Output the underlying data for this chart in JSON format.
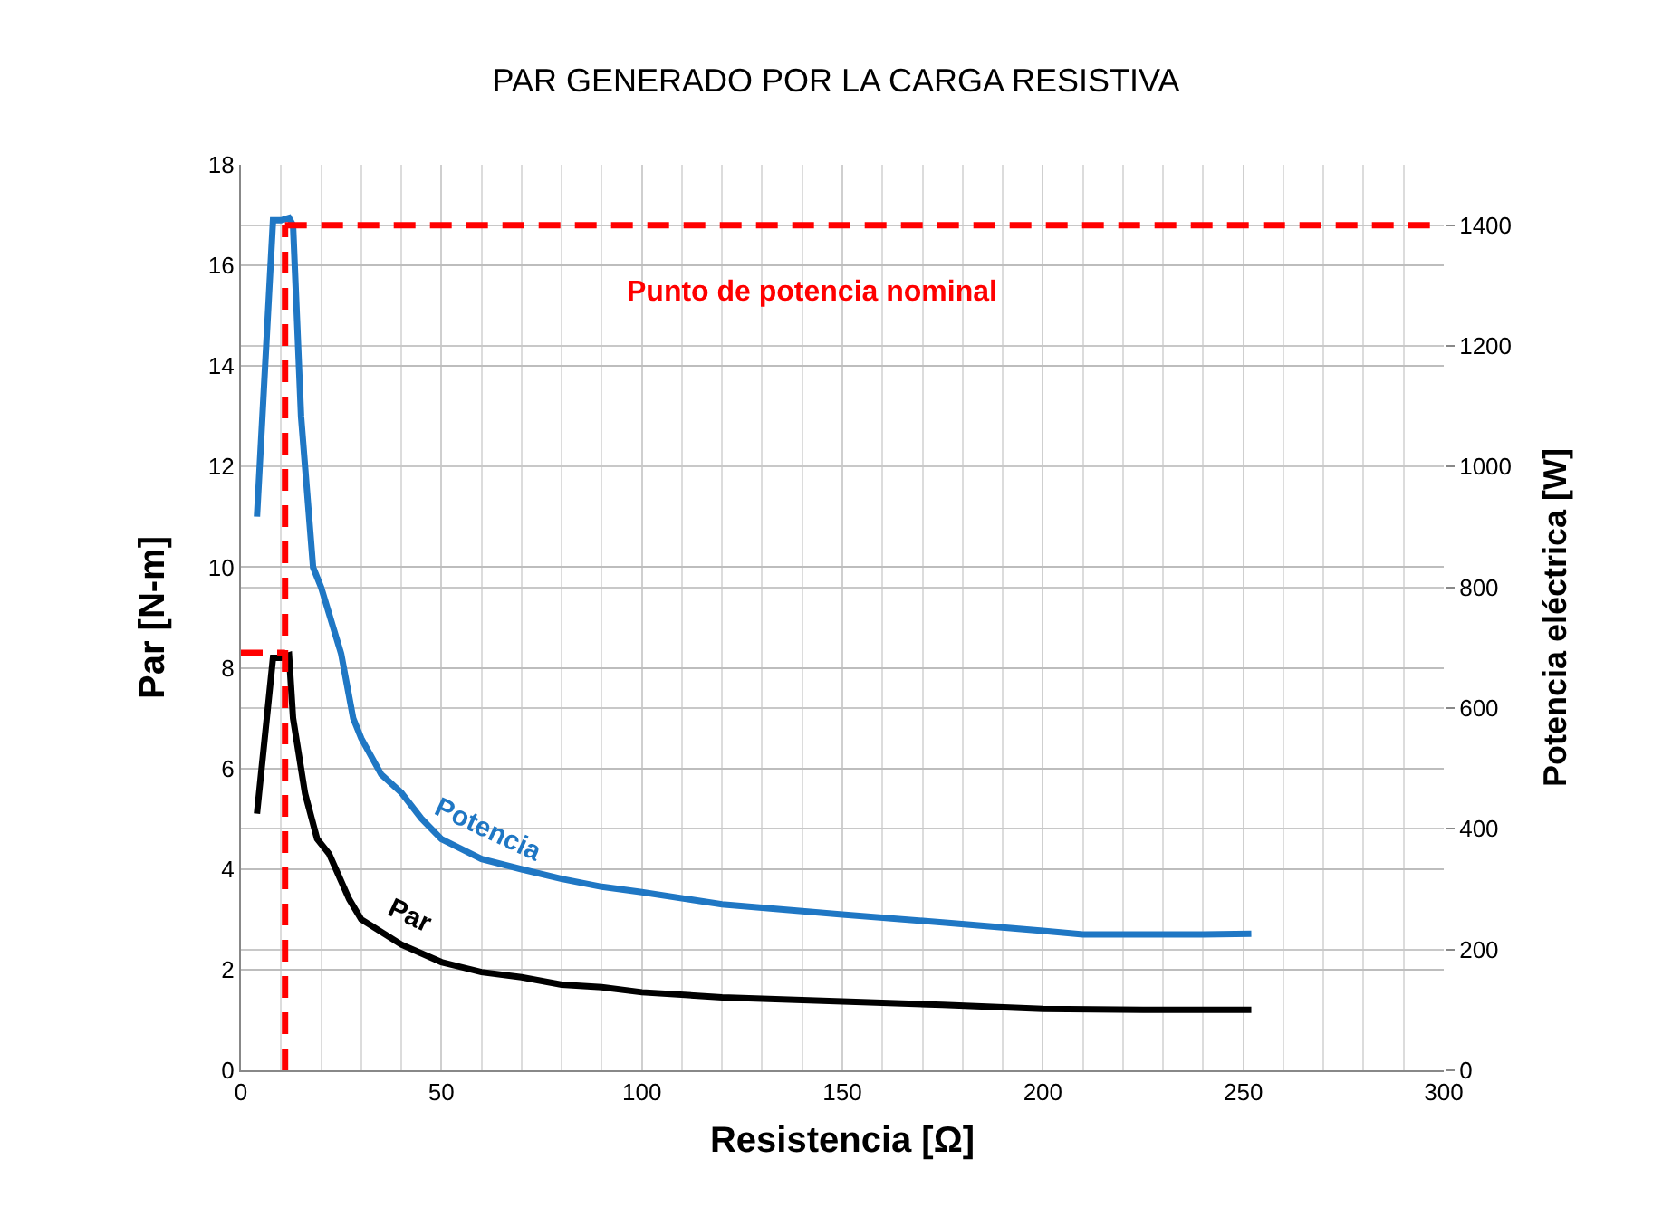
{
  "chart_data": {
    "type": "line",
    "title": "PAR GENERADO POR LA CARGA RESISTIVA",
    "xlabel": "Resistencia [Ω]",
    "ylabel": "Par [N-m]",
    "y2label": "Potencia eléctrica [W]",
    "xlim": [
      0,
      300
    ],
    "xticks": [
      0,
      50,
      100,
      150,
      200,
      250,
      300
    ],
    "ylim": [
      0,
      18
    ],
    "yticks": [
      0,
      2,
      4,
      6,
      8,
      10,
      12,
      14,
      16,
      18
    ],
    "y2lim": [
      0,
      1500
    ],
    "y2ticks": [
      0,
      200,
      400,
      600,
      800,
      1000,
      1200,
      1400
    ],
    "grid": true,
    "legend": false,
    "marker": "none",
    "line_style": "solid",
    "series": [
      {
        "name": "Potencia",
        "color": "#1f77c4",
        "axis": "y2",
        "x": [
          4,
          8,
          10,
          12,
          13,
          15,
          18,
          20,
          25,
          28,
          30,
          35,
          40,
          45,
          50,
          60,
          70,
          80,
          90,
          100,
          120,
          150,
          175,
          200,
          210,
          225,
          240,
          252
        ],
        "values": [
          917,
          1408,
          1408,
          1412,
          1400,
          1083,
          833,
          800,
          690,
          583,
          550,
          490,
          460,
          417,
          383,
          350,
          333,
          317,
          304,
          295,
          275,
          258,
          245,
          231,
          225,
          225,
          225,
          226
        ]
      },
      {
        "name": "Par",
        "color": "#000000",
        "axis": "y",
        "x": [
          4,
          8,
          10,
          12,
          13,
          16,
          19,
          22,
          27,
          30,
          40,
          50,
          60,
          70,
          80,
          90,
          100,
          120,
          150,
          175,
          200,
          225,
          252
        ],
        "values": [
          5.1,
          8.2,
          8.2,
          8.25,
          7,
          5.5,
          4.6,
          4.3,
          3.4,
          3.0,
          2.5,
          2.15,
          1.95,
          1.85,
          1.7,
          1.65,
          1.55,
          1.45,
          1.37,
          1.3,
          1.22,
          1.2,
          1.2
        ]
      },
      {
        "color": "#ff0000",
        "axis": "y",
        "line_style": "dashed",
        "x": [
          0,
          11
        ],
        "values": [
          8.3,
          8.3
        ]
      }
    ],
    "ref_lines": [
      {
        "axis": "y2",
        "value": 1400,
        "color": "#ff0000",
        "line_style": "dashed"
      },
      {
        "axis": "x",
        "value": 11,
        "color": "#ff0000",
        "line_style": "dashed"
      }
    ],
    "annotations": [
      "Punto de potencia nominal"
    ]
  }
}
